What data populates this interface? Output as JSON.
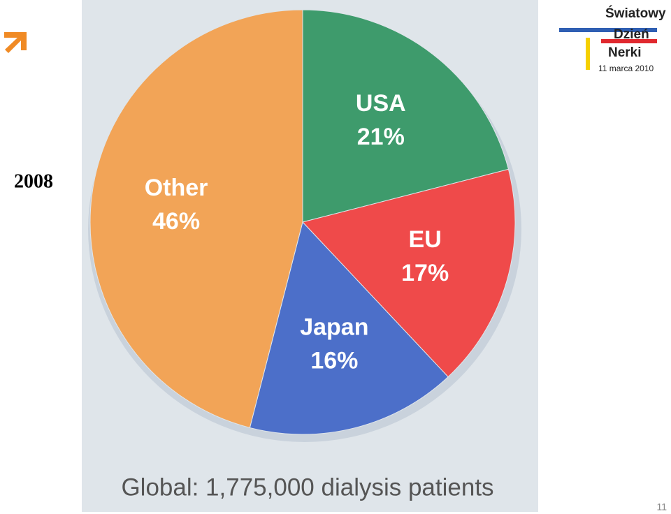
{
  "chart_data": {
    "type": "pie",
    "categories": [
      "USA",
      "EU",
      "Japan",
      "Other"
    ],
    "values": [
      21,
      17,
      16,
      46
    ],
    "value_labels": [
      "21%",
      "17%",
      "16%",
      "46%"
    ],
    "colors": [
      "#3e9b6c",
      "#ef4a4a",
      "#4c6fc9",
      "#f2a457"
    ],
    "caption": "Global: 1,775,000 dialysis patients"
  },
  "slide": {
    "year": "2008",
    "page_number": "11",
    "logo": {
      "line1": "Światowy",
      "line2": "Dzień",
      "line3": "Nerki",
      "date": "11 marca 2010"
    }
  }
}
